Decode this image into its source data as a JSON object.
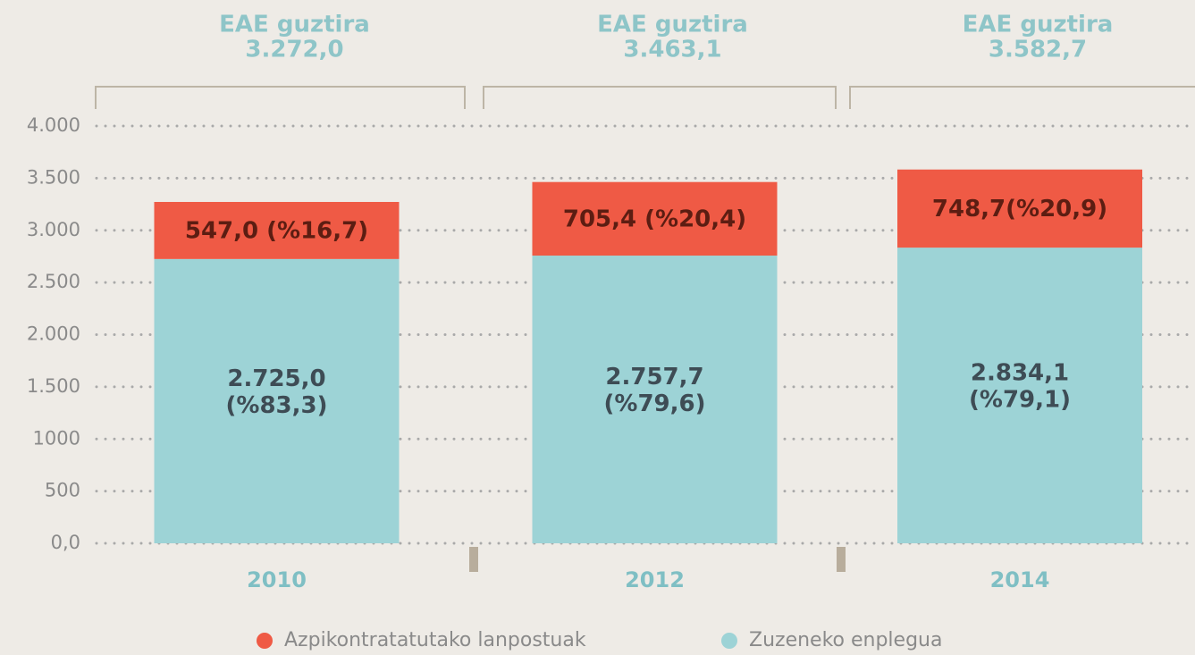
{
  "chart_data": {
    "type": "stacked_bar",
    "categories": [
      "2010",
      "2012",
      "2014"
    ],
    "series": [
      {
        "name": "Zuzeneko enplegua",
        "color": "#9dd3d6",
        "values": [
          2725.0,
          2757.7,
          2834.1
        ],
        "value_labels": [
          "2.725,0\n(%83,3)",
          "2.757,7\n(%79,6)",
          "2.834,1\n(%79,1)"
        ]
      },
      {
        "name": "Azpikontratatutako lanpostuak",
        "color": "#ef5a45",
        "values": [
          547.0,
          705.4,
          748.7
        ],
        "value_labels": [
          "547,0 (%16,7)",
          "705,4 (%20,4)",
          "748,7(%20,9)"
        ]
      }
    ],
    "totals_title": "EAE guztira",
    "totals": [
      "3.272,0",
      "3.463,1",
      "3.582,7"
    ],
    "ylim": [
      0,
      4000
    ],
    "yticks": [
      {
        "value": 0,
        "label": "0,0"
      },
      500,
      1000,
      {
        "value": 1500,
        "label": "1.500"
      },
      {
        "value": 2000,
        "label": "2.000"
      },
      {
        "value": 2500,
        "label": "2.500"
      },
      {
        "value": 3000,
        "label": "3.000"
      },
      {
        "value": 3500,
        "label": "3.500"
      },
      {
        "value": 4000,
        "label": "4.000"
      }
    ],
    "grid": true
  }
}
